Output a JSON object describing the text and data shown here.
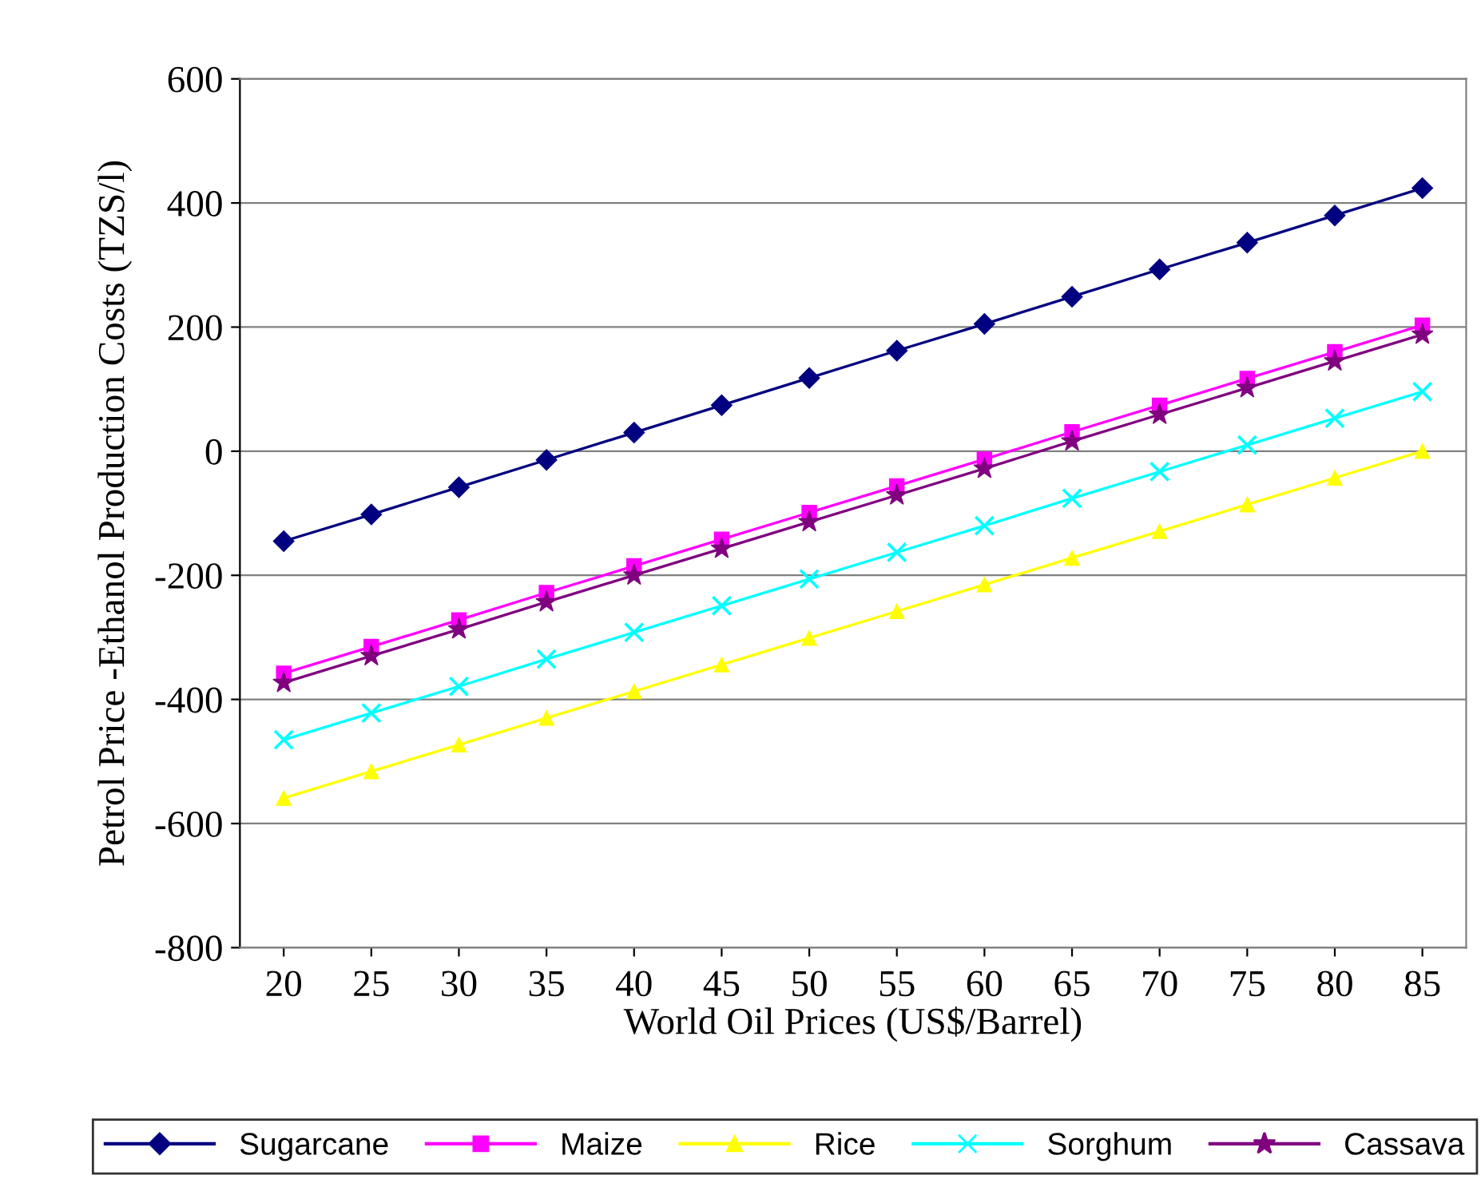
{
  "chart_data": {
    "type": "line",
    "xlabel": "World Oil Prices (US$/Barrel)",
    "ylabel": "Petrol Price -Ethanol Production Costs (TZS/l)",
    "categories": [
      "20",
      "25",
      "30",
      "35",
      "40",
      "45",
      "50",
      "55",
      "60",
      "65",
      "70",
      "75",
      "80",
      "85"
    ],
    "series": [
      {
        "name": "Sugarcane",
        "color": "#000080",
        "marker": "diamond",
        "values": [
          -145,
          -102,
          -58,
          -14,
          30,
          74,
          118,
          162,
          205,
          249,
          293,
          336,
          380,
          424
        ]
      },
      {
        "name": "Maize",
        "color": "#ff00ff",
        "marker": "square",
        "values": [
          -358,
          -315,
          -272,
          -228,
          -185,
          -142,
          -99,
          -56,
          -13,
          31,
          74,
          117,
          160,
          203
        ]
      },
      {
        "name": "Rice",
        "color": "#ffff00",
        "marker": "triangle",
        "values": [
          -559,
          -516,
          -473,
          -430,
          -387,
          -344,
          -301,
          -258,
          -215,
          -172,
          -129,
          -86,
          -43,
          0
        ]
      },
      {
        "name": "Sorghum",
        "color": "#00ffff",
        "marker": "cross",
        "values": [
          -465,
          -422,
          -379,
          -335,
          -292,
          -249,
          -206,
          -163,
          -120,
          -76,
          -33,
          10,
          53,
          96
        ]
      },
      {
        "name": "Cassava",
        "color": "#800080",
        "marker": "star",
        "values": [
          -373,
          -330,
          -287,
          -243,
          -200,
          -157,
          -114,
          -71,
          -28,
          16,
          59,
          102,
          145,
          188
        ]
      }
    ],
    "ylim": [
      -800,
      600
    ],
    "yticks": [
      -800,
      -600,
      -400,
      -200,
      0,
      200,
      400,
      600
    ],
    "grid": "y",
    "legend": "bottom"
  }
}
